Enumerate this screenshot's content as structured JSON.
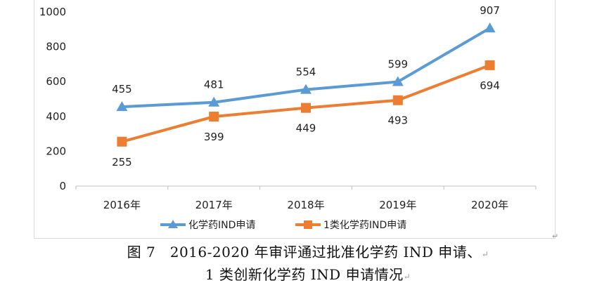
{
  "chart_data": {
    "type": "line",
    "categories": [
      "2016年",
      "2017年",
      "2018年",
      "2019年",
      "2020年"
    ],
    "series": [
      {
        "name": "化学药IND申请",
        "values": [
          455,
          481,
          554,
          599,
          907
        ],
        "color": "#5b9bd5",
        "marker": "triangle"
      },
      {
        "name": "1类化学药IND申请",
        "values": [
          255,
          399,
          449,
          493,
          694
        ],
        "color": "#ed7d31",
        "marker": "square"
      }
    ],
    "ylim": [
      0,
      1000
    ],
    "yticks": [
      0,
      200,
      400,
      600,
      800,
      1000
    ],
    "grid": false,
    "legend": "bottom",
    "data_labels": true
  },
  "caption": {
    "line1": "图 7　2016-2020 年审评通过批准化学药 IND 申请、",
    "line2": "1 类创新化学药 IND 申请情况"
  },
  "marks": {
    "paragraph": "↵"
  }
}
